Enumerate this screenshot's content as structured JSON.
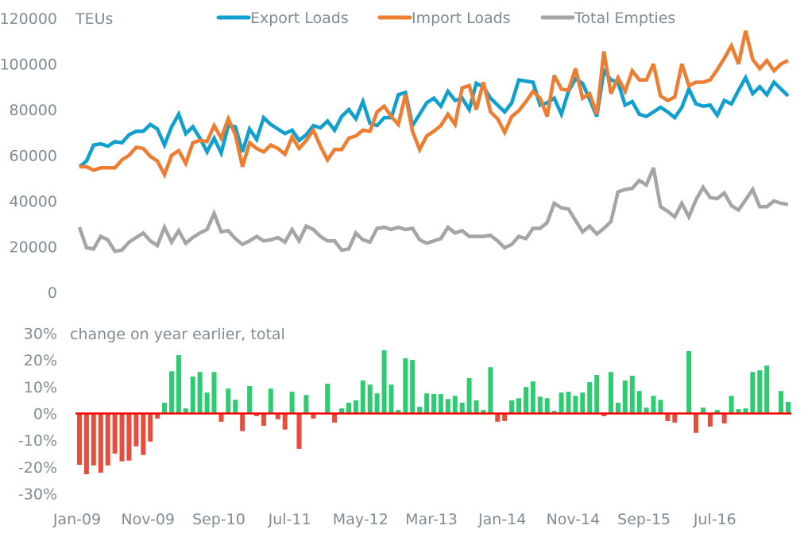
{
  "chart_data": [
    {
      "type": "line",
      "title": "",
      "unit_label": "TEUs",
      "xlabel": "",
      "ylabel": "TEUs",
      "ylim": [
        0,
        120000
      ],
      "yticks": [
        0,
        20000,
        40000,
        60000,
        80000,
        100000,
        120000
      ],
      "grid": false,
      "legend_position": "top",
      "x_start": "Jan-09",
      "x_end": "May-17",
      "series": [
        {
          "name": "Export Loads",
          "color": "#0fa0cf",
          "values": [
            55000,
            57500,
            64500,
            65000,
            64000,
            66000,
            65500,
            69000,
            70500,
            70500,
            73500,
            71500,
            64500,
            72500,
            78000,
            69500,
            72500,
            67500,
            61500,
            67500,
            61000,
            73000,
            72500,
            61500,
            71500,
            67000,
            76500,
            73500,
            71500,
            69500,
            71000,
            66500,
            69000,
            73000,
            72000,
            75000,
            71000,
            77000,
            80000,
            76000,
            83500,
            74000,
            73000,
            76500,
            76500,
            86500,
            87500,
            73000,
            78000,
            83000,
            85000,
            81500,
            88000,
            84000,
            85000,
            80000,
            91500,
            90000,
            85000,
            82000,
            79000,
            83000,
            93000,
            92500,
            92000,
            82000,
            83000,
            85000,
            78000,
            88000,
            93500,
            91500,
            84500,
            77000,
            97000,
            93000,
            92000,
            82000,
            83500,
            78000,
            77000,
            79000,
            81000,
            79000,
            76500,
            81000,
            89000,
            82500,
            81500,
            82000,
            77500,
            84000,
            82500,
            88500,
            94000,
            87000,
            90000,
            86500,
            92000,
            89000,
            86000
          ]
        },
        {
          "name": "Import Loads",
          "color": "#ee7d31",
          "values": [
            55000,
            55000,
            53500,
            54500,
            54500,
            54500,
            58000,
            60000,
            63500,
            63000,
            59500,
            57500,
            51500,
            60000,
            62000,
            56500,
            65500,
            66500,
            66000,
            73000,
            67500,
            76000,
            69000,
            55000,
            65500,
            63000,
            61500,
            64500,
            63000,
            60500,
            68000,
            63000,
            66500,
            71000,
            64000,
            58000,
            62500,
            62500,
            67500,
            68500,
            71000,
            70500,
            79000,
            81500,
            77000,
            73500,
            86500,
            70500,
            62500,
            68500,
            70500,
            73000,
            78000,
            73500,
            89500,
            90500,
            80000,
            92000,
            79000,
            76000,
            70000,
            77000,
            79500,
            83500,
            88000,
            85000,
            77000,
            95000,
            89000,
            88500,
            98000,
            85000,
            87000,
            78000,
            105500,
            87000,
            94000,
            88000,
            97000,
            93000,
            93000,
            100000,
            86000,
            84000,
            85500,
            100000,
            90500,
            92000,
            92000,
            93000,
            97500,
            102500,
            108000,
            100000,
            114500,
            102000,
            98000,
            101500,
            97000,
            100000,
            101500
          ]
        },
        {
          "name": "Total Empties",
          "color": "#a5a5a5",
          "values": [
            28500,
            19500,
            19000,
            24500,
            23000,
            18000,
            18500,
            22000,
            24000,
            26000,
            22500,
            20500,
            28500,
            22000,
            27000,
            21500,
            24000,
            26000,
            27500,
            34500,
            26500,
            27000,
            23500,
            21000,
            22500,
            24500,
            22500,
            23000,
            24000,
            22000,
            27500,
            22500,
            29000,
            27500,
            24500,
            22500,
            22500,
            18500,
            19000,
            26000,
            23000,
            22000,
            28000,
            28500,
            27500,
            28500,
            27500,
            28000,
            23000,
            21500,
            22500,
            23500,
            28500,
            26000,
            27000,
            24500,
            24500,
            24500,
            25000,
            22500,
            19500,
            21000,
            24500,
            23500,
            28000,
            28000,
            30500,
            39000,
            37000,
            36500,
            31500,
            26500,
            29000,
            25500,
            28000,
            31000,
            44000,
            45000,
            45500,
            49000,
            47000,
            54500,
            37500,
            35500,
            33000,
            39000,
            33000,
            40500,
            46000,
            41500,
            41000,
            43500,
            38000,
            36000,
            40500,
            45000,
            37500,
            37500,
            40000,
            39000,
            38500
          ]
        }
      ]
    },
    {
      "type": "bar",
      "title": "",
      "unit_label": "change on year earlier, total",
      "xlabel": "",
      "ylabel": "change on year earlier, total (%)",
      "ylim": [
        -30,
        30
      ],
      "yticks": [
        "30%",
        "20%",
        "10%",
        "0%",
        "-10%",
        "-20%",
        "-30%"
      ],
      "ytick_values": [
        30,
        20,
        10,
        0,
        -10,
        -20,
        -30
      ],
      "grid": false,
      "positive_color": "#2ecc71",
      "negative_color": "#e74c3c",
      "zero_line_color": "#ff0000",
      "x_start": "Jan-09",
      "x_end": "May-17",
      "values": [
        -19.2,
        -22.7,
        -19.4,
        -22.1,
        -19.4,
        -15.0,
        -17.9,
        -17.6,
        -12.3,
        -15.5,
        -10.5,
        -1.9,
        4.0,
        15.8,
        21.8,
        1.9,
        13.8,
        15.5,
        7.8,
        15.5,
        -3.1,
        9.3,
        5.1,
        -6.6,
        10.2,
        -1.0,
        -4.6,
        9.3,
        -2.2,
        -6.0,
        8.1,
        -13.2,
        6.9,
        -1.9,
        0,
        11.1,
        -3.4,
        1.9,
        4.0,
        4.9,
        12.3,
        10.8,
        7.5,
        23.6,
        10.8,
        1.3,
        20.6,
        20.0,
        2.5,
        7.5,
        7.3,
        7.2,
        5.4,
        6.6,
        4.0,
        13.2,
        4.9,
        1.3,
        17.3,
        -3.1,
        -2.8,
        4.9,
        5.7,
        9.9,
        12.0,
        6.3,
        5.7,
        1.0,
        7.8,
        8.1,
        6.6,
        7.8,
        11.7,
        14.4,
        -1.0,
        15.5,
        4.0,
        12.3,
        14.1,
        8.4,
        2.2,
        6.6,
        5.1,
        -2.8,
        -3.4,
        0,
        23.3,
        -7.2,
        2.2,
        -4.9,
        1.3,
        -3.7,
        6.6,
        1.6,
        1.9,
        15.5,
        16.1,
        17.9,
        0,
        8.4,
        4.3
      ]
    }
  ],
  "x_axis": {
    "tick_labels": [
      "Jan-09",
      "Nov-09",
      "Sep-10",
      "Jul-11",
      "May-12",
      "Mar-13",
      "Jan-14",
      "Nov-14",
      "Sep-15",
      "Jul-16"
    ],
    "tick_month_index": [
      0,
      10,
      20,
      30,
      40,
      50,
      60,
      70,
      80,
      90
    ]
  },
  "top_yticks_labels": [
    "0",
    "20000",
    "40000",
    "60000",
    "80000",
    "100000",
    "120000"
  ]
}
